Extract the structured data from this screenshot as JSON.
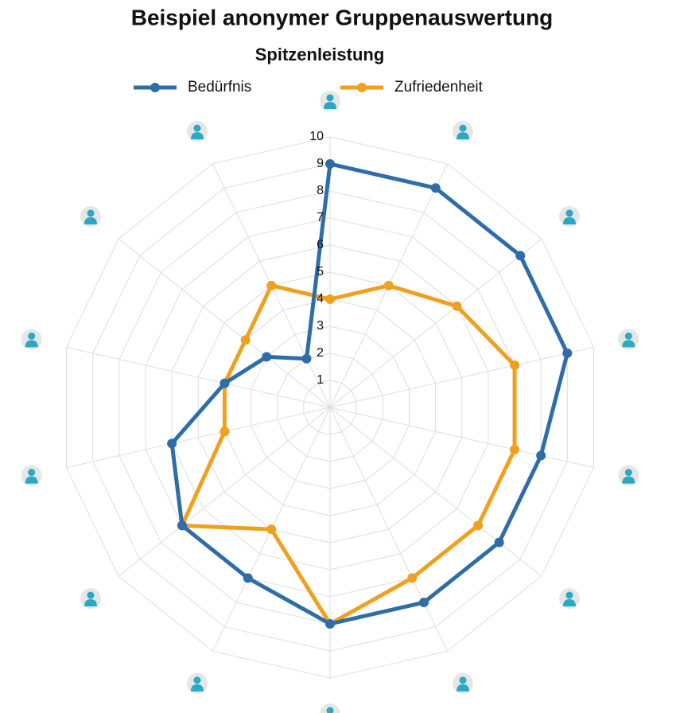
{
  "chart_data": {
    "type": "radar",
    "title": "Beispiel anonymer Gruppenauswertung",
    "subtitle": "Spitzenleistung",
    "categories": [
      null,
      null,
      null,
      null,
      null,
      null,
      null,
      null,
      null,
      null,
      null,
      null,
      null,
      null
    ],
    "series": [
      {
        "name": "Bedürfnis",
        "color": "#2e6da8",
        "values": [
          9,
          9,
          9,
          9,
          8,
          8,
          8,
          8,
          7,
          7,
          6,
          4,
          3,
          2
        ]
      },
      {
        "name": "Zufriedenheit",
        "color": "#f0a01e",
        "values": [
          4,
          5,
          6,
          7,
          7,
          7,
          7,
          8,
          5,
          7,
          4,
          4,
          4,
          5
        ]
      }
    ],
    "ylim": [
      0,
      10
    ],
    "yticks": [
      1,
      2,
      3,
      4,
      5,
      6,
      7,
      8,
      9,
      10
    ],
    "grid": true,
    "legend": "top"
  }
}
